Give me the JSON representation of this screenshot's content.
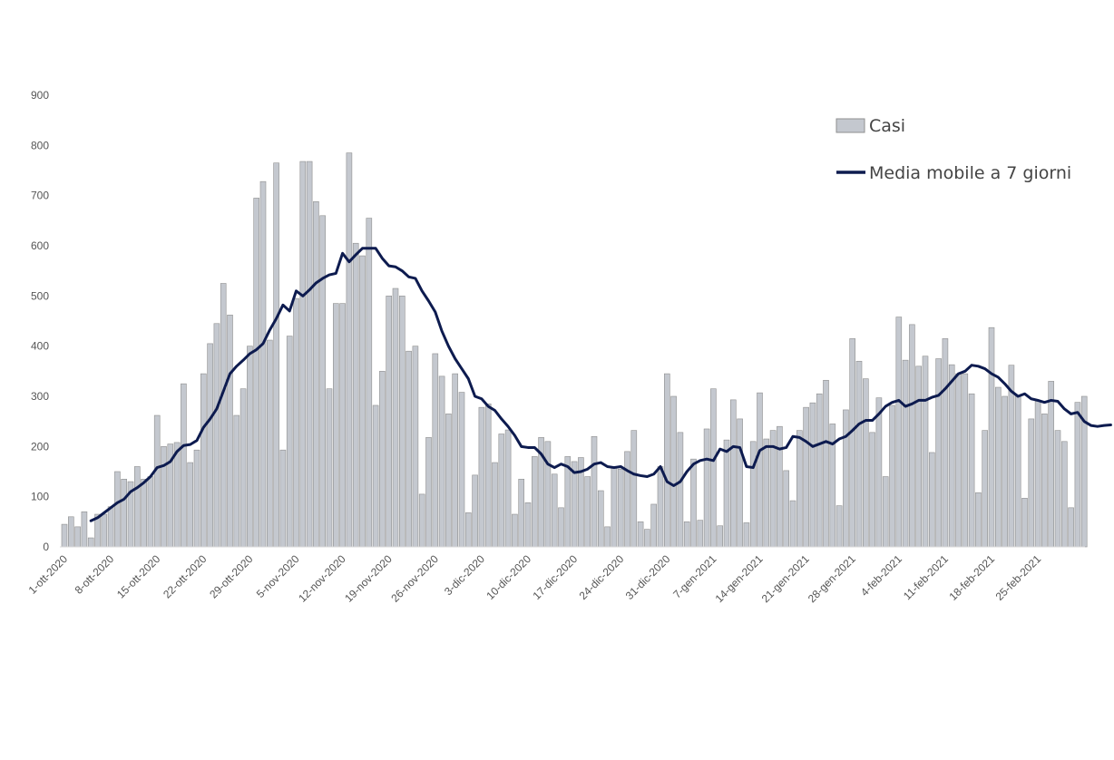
{
  "chart_data": {
    "type": "bar",
    "title": "",
    "xlabel": "",
    "ylabel": "",
    "ylim": [
      0,
      900
    ],
    "yticks": [
      "0",
      "100",
      "200",
      "300",
      "400",
      "500",
      "600",
      "700",
      "800",
      "900"
    ],
    "grid": false,
    "legend_position": "top-right",
    "x_tick_labels": [
      "1-ott-2020",
      "8-ott-2020",
      "15-ott-2020",
      "22-ott-2020",
      "29-ott-2020",
      "5-nov-2020",
      "12-nov-2020",
      "19-nov-2020",
      "26-nov-2020",
      "3-dic-2020",
      "10-dic-2020",
      "17-dic-2020",
      "24-dic-2020",
      "31-dic-2020",
      "7-gen-2021",
      "14-gen-2021",
      "21-gen-2021",
      "28-gen-2021",
      "4-feb-2021",
      "11-feb-2021",
      "18-feb-2021",
      "25-feb-2021"
    ],
    "start_date": "1-ott-2020",
    "series": [
      {
        "name": "Casi",
        "type": "bar",
        "color": "#c4c8cf",
        "values": [
          45,
          60,
          40,
          70,
          18,
          65,
          65,
          80,
          150,
          135,
          130,
          160,
          135,
          140,
          262,
          200,
          205,
          208,
          325,
          168,
          193,
          345,
          405,
          445,
          525,
          462,
          262,
          315,
          400,
          695,
          728,
          412,
          765,
          193,
          420,
          495,
          768,
          768,
          688,
          660,
          315,
          485,
          485,
          785,
          605,
          580,
          655,
          282,
          350,
          500,
          515,
          500,
          390,
          400,
          105,
          218,
          385,
          340,
          265,
          345,
          308,
          68,
          143,
          278,
          285,
          168,
          225,
          233,
          65,
          135,
          88,
          180,
          218,
          210,
          145,
          78,
          180,
          170,
          178,
          140,
          220,
          112,
          40,
          157,
          155,
          190,
          232,
          50,
          35,
          85,
          160,
          345,
          300,
          228,
          50,
          175,
          53,
          235,
          315,
          42,
          213,
          293,
          255,
          48,
          210,
          307,
          215,
          232,
          240,
          152,
          92,
          232,
          278,
          287,
          305,
          332,
          245,
          82,
          273,
          415,
          370,
          335,
          228,
          297,
          140,
          282,
          458,
          372,
          443,
          360,
          380,
          188,
          375,
          415,
          363,
          345,
          345,
          305,
          108,
          232,
          437,
          318,
          300,
          362,
          300,
          97,
          255,
          290,
          265,
          330,
          232,
          210,
          78,
          288,
          300
        ]
      },
      {
        "name": "Media mobile a 7 giorni",
        "type": "line",
        "color": "#0d1b4f",
        "start_index": 4,
        "values": [
          52,
          58,
          68,
          78,
          88,
          95,
          110,
          118,
          128,
          140,
          158,
          162,
          170,
          190,
          202,
          204,
          212,
          238,
          255,
          275,
          310,
          345,
          360,
          372,
          385,
          393,
          405,
          432,
          455,
          482,
          470,
          510,
          500,
          512,
          526,
          535,
          542,
          545,
          585,
          568,
          582,
          595,
          595,
          595,
          575,
          560,
          558,
          550,
          538,
          535,
          510,
          490,
          468,
          430,
          400,
          375,
          355,
          335,
          300,
          295,
          280,
          272,
          255,
          240,
          222,
          200,
          198,
          198,
          185,
          165,
          158,
          165,
          160,
          148,
          150,
          155,
          165,
          168,
          160,
          158,
          160,
          152,
          145,
          142,
          140,
          145,
          160,
          130,
          122,
          130,
          150,
          165,
          172,
          175,
          172,
          195,
          190,
          200,
          198,
          160,
          158,
          192,
          200,
          200,
          195,
          198,
          220,
          218,
          210,
          200,
          205,
          210,
          205,
          215,
          220,
          232,
          245,
          252,
          252,
          265,
          280,
          288,
          292,
          280,
          285,
          292,
          292,
          298,
          302,
          315,
          330,
          345,
          350,
          362,
          360,
          355,
          345,
          338,
          325,
          310,
          300,
          305,
          295,
          292,
          288,
          292,
          290,
          275,
          265,
          268,
          250,
          242,
          240,
          242,
          243
        ]
      }
    ]
  }
}
